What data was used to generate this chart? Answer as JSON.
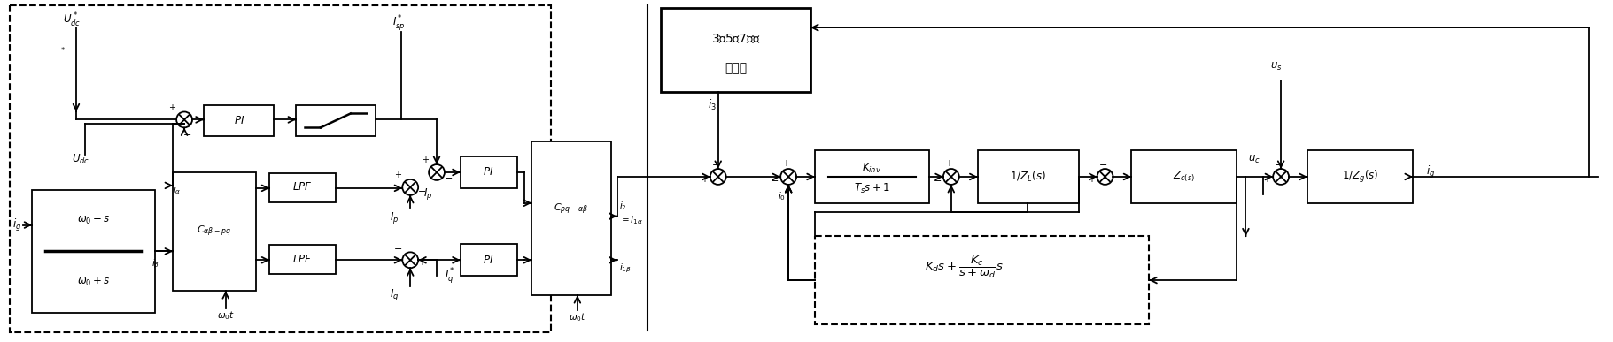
{
  "fig_width": 18.21,
  "fig_height": 3.87,
  "dpi": 100,
  "bg_color": "#ffffff",
  "lc": "#000000",
  "lw": 1.3,
  "fs": 8.5
}
